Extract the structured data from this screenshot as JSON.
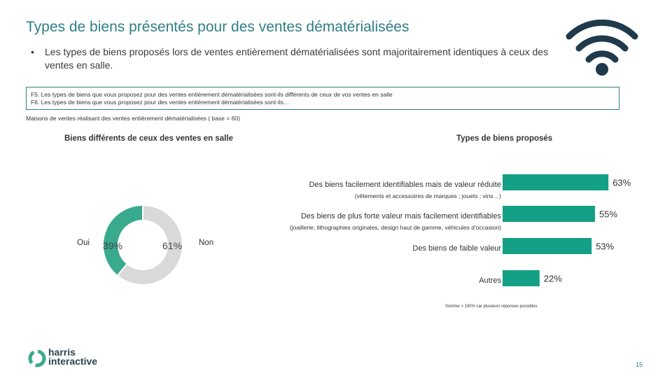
{
  "header": {
    "title": "Types de biens présentés pour des ventes dématérialisées",
    "bullet": "Les types de biens proposés lors de ventes entièrement dématérialisées sont majoritairement identiques à ceux des ventes en salle.",
    "bullet_symbol": "•"
  },
  "question": {
    "line1": "F5. Les types de biens que vous proposez pour des ventes entièrement dématérialisées sont-ils différents de ceux de vos ventes en salle",
    "line2": "F6. Les types de biens que vous proposez pour des ventes entièrement dématérialisées sont-ils…"
  },
  "base_text": "Maisons de ventes réalisant des ventes entièrement dématérialisées ( base = 60)",
  "colors": {
    "teal": "#3aaa8e",
    "bar": "#13a085",
    "grey": "#d9d9d9",
    "title": "#2f7f86",
    "navy": "#1f3a4a"
  },
  "chart_data": [
    {
      "type": "pie",
      "title": "Biens différents de ceux des ventes en salle",
      "categories": [
        "Oui",
        "Non"
      ],
      "values": [
        39,
        61
      ],
      "labels": [
        "39%",
        "61%"
      ]
    },
    {
      "type": "bar",
      "orientation": "horizontal",
      "title": "Types de biens proposés",
      "categories": [
        "Des biens facilement identifiables mais de valeur réduite",
        "Des biens de plus forte valeur mais facilement identifiables",
        "Des biens de faible valeur",
        "Autres"
      ],
      "subcategories": [
        "(vêtements et accessoires de marques ; jouets ; vins…)",
        "(joaillerie, lithographies originales, design haut de gamme, véhicules d'occasion)",
        "",
        ""
      ],
      "values": [
        63,
        55,
        53,
        22
      ],
      "labels": [
        "63%",
        "55%",
        "53%",
        "22%"
      ],
      "xlim": [
        0,
        100
      ],
      "note": "Somme > 100% car plusieurs réponses possibles"
    }
  ],
  "footer": {
    "logo_line1": "harris",
    "logo_line2": "interactive",
    "page_number": "15"
  }
}
